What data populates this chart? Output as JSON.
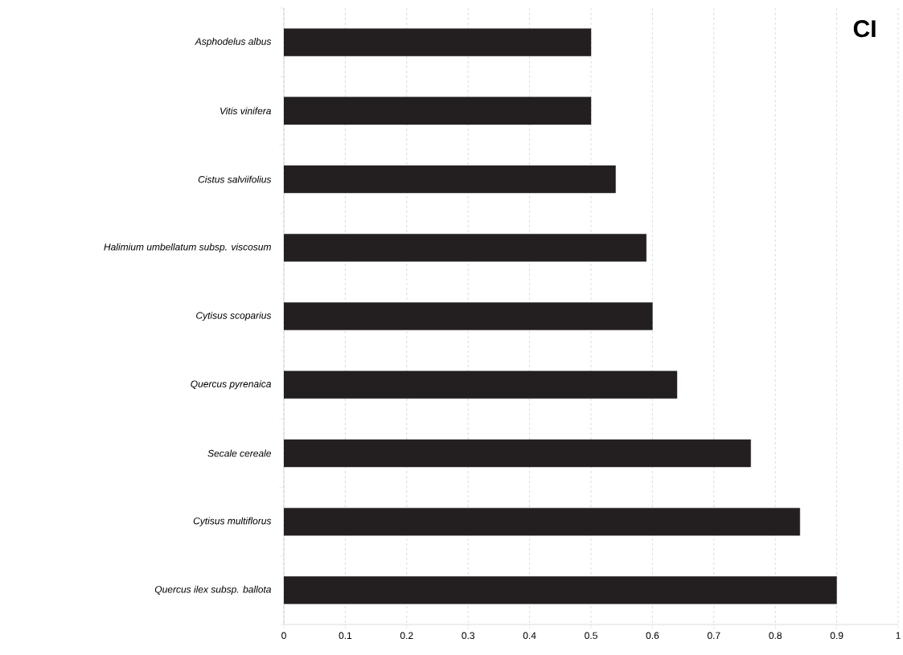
{
  "chart_data": {
    "type": "bar",
    "orientation": "horizontal",
    "annotations": [
      "CI"
    ],
    "categories": [
      "Asphodelus albus",
      "Vitis vinifera",
      "Cistus salviifolius",
      "Halimium umbellatum subsp. viscosum",
      "Cytisus scoparius",
      "Quercus pyrenaica",
      "Secale cereale",
      "Cytisus multiflorus",
      "Quercus ilex subsp. ballota"
    ],
    "values": [
      0.5,
      0.5,
      0.54,
      0.59,
      0.6,
      0.64,
      0.76,
      0.84,
      0.9
    ],
    "color": "#231f20",
    "xlim": [
      0,
      1
    ],
    "xticks": [
      0,
      0.1,
      0.2,
      0.3,
      0.4,
      0.5,
      0.6,
      0.7,
      0.8,
      0.9,
      1
    ],
    "grid": "x"
  }
}
